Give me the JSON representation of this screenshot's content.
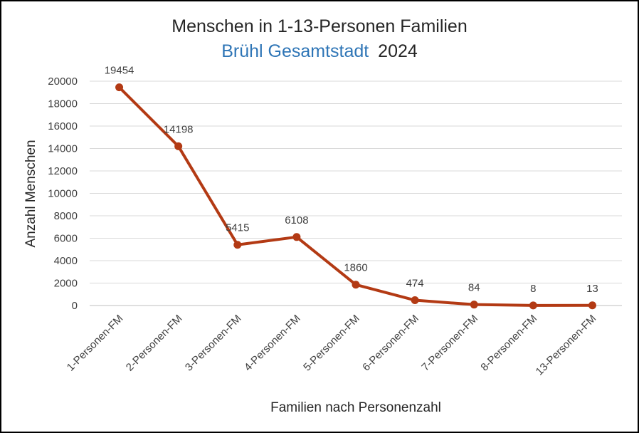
{
  "chart_data": {
    "type": "line",
    "title": "Menschen in 1-13-Personen Familien",
    "subtitle_place": "Brühl Gesamtstadt",
    "subtitle_year": "2024",
    "xlabel": "Familien nach Personenzahl",
    "ylabel": "Anzahl Menschen",
    "categories": [
      "1-Personen-FM",
      "2-Personen-FM",
      "3-Personen-FM",
      "4-Personen-FM",
      "5-Personen-FM",
      "6-Personen-FM",
      "7-Personen-FM",
      "8-Personen-FM",
      "13-Personen-FM"
    ],
    "values": [
      19454,
      14198,
      5415,
      6108,
      1860,
      474,
      84,
      8,
      13
    ],
    "data_labels": [
      "19454",
      "14198",
      "5415",
      "6108",
      "1860",
      "474",
      "84",
      "8",
      "13"
    ],
    "ylim": [
      0,
      20000
    ],
    "yticks": [
      "0",
      "2000",
      "4000",
      "6000",
      "8000",
      "10000",
      "12000",
      "14000",
      "16000",
      "18000",
      "20000"
    ],
    "grid": true,
    "legend": "none"
  },
  "colors": {
    "series": "#b33a14",
    "subtitle_place": "#2e75b6",
    "title": "#262626"
  }
}
